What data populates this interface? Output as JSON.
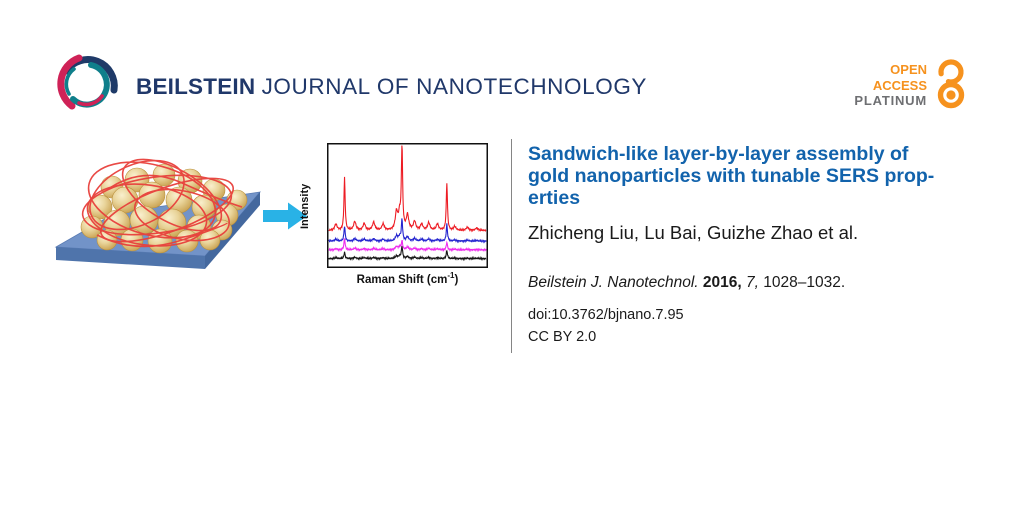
{
  "header": {
    "journal_name_bold": "BEILSTEIN",
    "journal_name_rest": "JOURNAL OF NANOTECHNOLOGY",
    "open_access": {
      "line1": "OPEN",
      "line2": "ACCESS",
      "line3": "PLATINUM"
    }
  },
  "article": {
    "title_lines": [
      "Sandwich-like layer-by-layer assembly of",
      "gold nanoparticles with tunable SERS prop-",
      "erties"
    ],
    "title_full": "Sandwich-like layer-by-layer assembly of gold nanoparticles with tunable SERS properties",
    "authors": "Zhicheng Liu, Lu Bai, Guizhe Zhao et al.",
    "citation": {
      "journal": "Beilstein J. Nanotechnol.",
      "year": "2016,",
      "volume": "7,",
      "pages": "1028–1032."
    },
    "doi": "doi:10.3762/bjnano.7.95",
    "license": "CC BY 2.0"
  },
  "colors": {
    "title_blue": "#1263ac",
    "journal_navy": "#20386a",
    "oa_orange": "#f6921e",
    "oa_gray": "#6e6f72",
    "arrow_cyan": "#29b2e6",
    "divider_gray": "#858585",
    "slab_top": "#7293c8",
    "slab_front": "#4f74ab",
    "slab_side": "#44689e",
    "strand_red": "#e8403c",
    "sphere_gold": "#e6cf92"
  },
  "chart_data": {
    "type": "line",
    "title": "",
    "xlabel": "Raman Shift (cm⁻¹)",
    "xlabel_parts": {
      "main": "Raman Shift (cm",
      "sup": "-1",
      "close": ")"
    },
    "ylabel": "Intensity",
    "x_range": [
      0,
      1
    ],
    "axis_ticks": "none",
    "grid": false,
    "legend": "none",
    "description": "Four stacked Raman spectra with three main peaks each (offset vertically); top red trace most intense, then blue, magenta, black.",
    "main_peak_positions": [
      0.1,
      0.465,
      0.75
    ],
    "series": [
      {
        "name": "spectrum-red",
        "color": "#ed1c24",
        "baseline": 0.7,
        "peaks": [
          [
            0.1,
            0.42
          ],
          [
            0.465,
            0.68
          ],
          [
            0.75,
            0.38
          ]
        ],
        "minor_scale": 1.0
      },
      {
        "name": "spectrum-blue",
        "color": "#2424cf",
        "baseline": 0.785,
        "peaks": [
          [
            0.1,
            0.12
          ],
          [
            0.465,
            0.17
          ],
          [
            0.75,
            0.135
          ]
        ],
        "minor_scale": 0.28
      },
      {
        "name": "spectrum-magenta",
        "color": "#ee2aee",
        "baseline": 0.855,
        "peaks": [
          [
            0.1,
            0.09
          ],
          [
            0.465,
            0.068
          ],
          [
            0.75,
            0.06
          ]
        ],
        "minor_scale": 0.18
      },
      {
        "name": "spectrum-black",
        "color": "#141414",
        "baseline": 0.925,
        "peaks": [
          [
            0.1,
            0.05
          ],
          [
            0.465,
            0.095
          ],
          [
            0.75,
            0.065
          ]
        ],
        "minor_scale": 0.14
      }
    ],
    "minor_peaks": [
      [
        0.045,
        0.05
      ],
      [
        0.165,
        0.07
      ],
      [
        0.225,
        0.055
      ],
      [
        0.285,
        0.065
      ],
      [
        0.345,
        0.05
      ],
      [
        0.43,
        0.14
      ],
      [
        0.45,
        0.12
      ],
      [
        0.5,
        0.12
      ],
      [
        0.545,
        0.07
      ],
      [
        0.59,
        0.05
      ],
      [
        0.635,
        0.06
      ],
      [
        0.69,
        0.05
      ],
      [
        0.8,
        0.03
      ],
      [
        0.88,
        0.025
      ],
      [
        0.94,
        0.02
      ]
    ]
  }
}
